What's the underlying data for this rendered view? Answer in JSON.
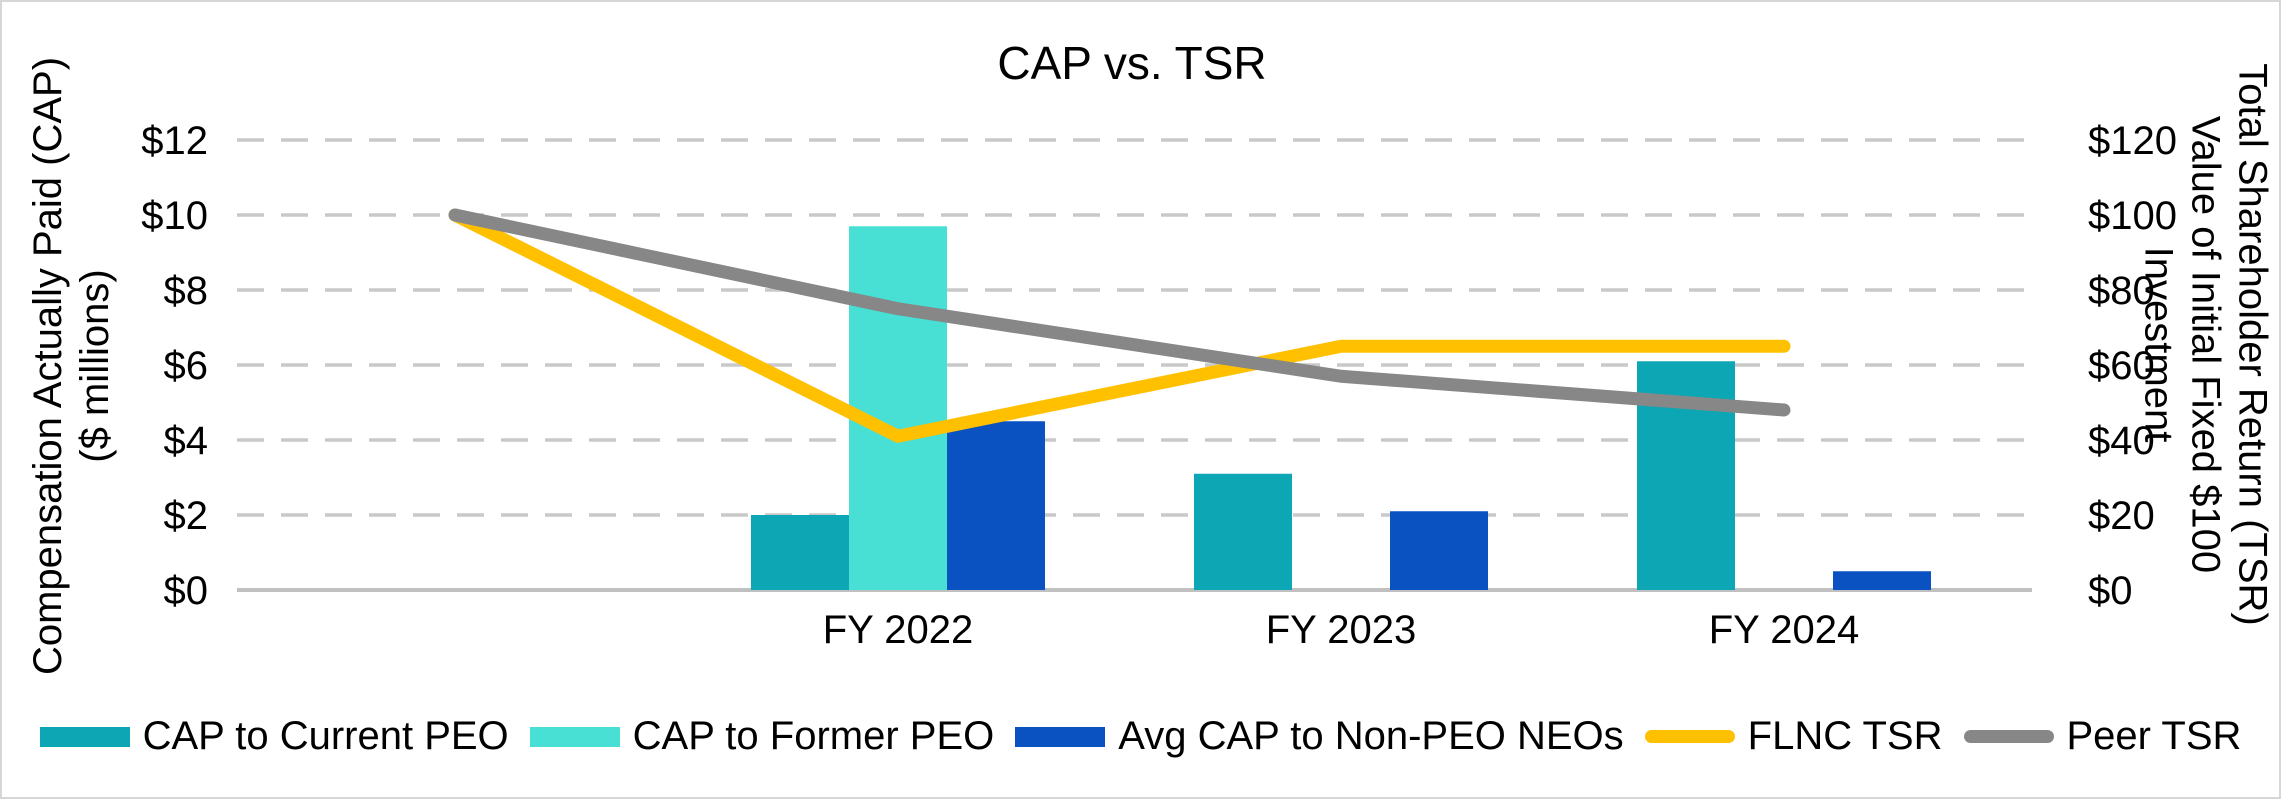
{
  "title": "CAP vs. TSR",
  "left_axis": {
    "title_line1": "Compensation Actually Paid (CAP)",
    "title_line2": "($ millions)",
    "ticks": [
      "$12",
      "$10",
      "$8",
      "$6",
      "$4",
      "$2",
      "$0"
    ]
  },
  "right_axis": {
    "title_line1": "Total Shareholder Return (TSR)",
    "title_line2": "Value of Initial Fixed $100",
    "title_line3": "Investment",
    "ticks": [
      "$120",
      "$100",
      "$80",
      "$60",
      "$40",
      "$20",
      "$0"
    ]
  },
  "x_axis": {
    "labels": [
      "FY 2022",
      "FY 2023",
      "FY 2024"
    ]
  },
  "chart_data": {
    "type": "bar",
    "subtype": "combo bar + line, dual y-axis",
    "title": "CAP vs. TSR",
    "categories": [
      "",
      "FY 2022",
      "FY 2023",
      "FY 2024"
    ],
    "bar_axis_label": "Compensation Actually Paid (CAP) ($ millions)",
    "line_axis_label": "Total Shareholder Return (TSR) Value of Initial Fixed $100 Investment",
    "left_ylim": [
      0,
      12
    ],
    "left_tick_step": 2,
    "right_ylim": [
      0,
      120
    ],
    "right_tick_step": 20,
    "grid": "horizontal dashed",
    "legend_position": "bottom",
    "bar_series": [
      {
        "name": "CAP to Current PEO",
        "color": "#0da6b4",
        "values": [
          null,
          2.0,
          3.1,
          6.1
        ]
      },
      {
        "name": "CAP to Former PEO",
        "color": "#48dfd4",
        "values": [
          null,
          9.7,
          null,
          null
        ]
      },
      {
        "name": "Avg CAP to Non-PEO NEOs",
        "color": "#0a52c2",
        "values": [
          null,
          4.5,
          2.1,
          0.5
        ]
      }
    ],
    "line_series": [
      {
        "name": "FLNC TSR",
        "color": "#ffc000",
        "values": [
          100,
          41,
          65,
          65
        ]
      },
      {
        "name": "Peer TSR",
        "color": "#878787",
        "values": [
          100,
          75,
          57,
          48
        ]
      }
    ]
  },
  "colors": {
    "gridline": "#c9c9c9",
    "axis_line": "#c0c0c0",
    "border": "#d6d6d6",
    "text": "#000000"
  }
}
